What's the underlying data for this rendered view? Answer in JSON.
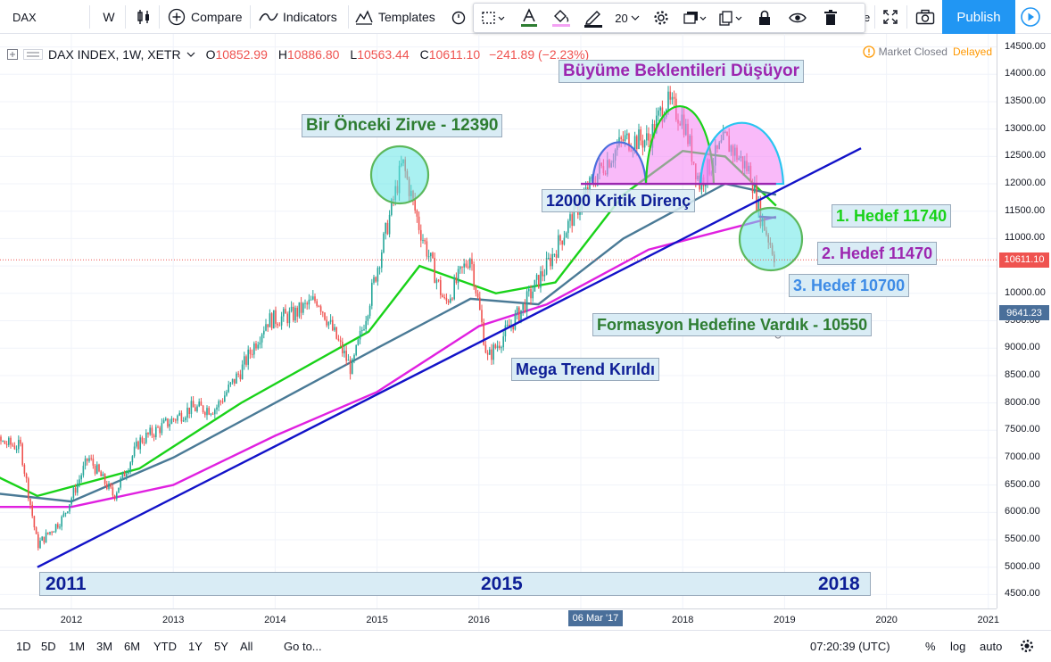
{
  "toolbar": {
    "symbol": "DAX",
    "interval": "W",
    "compare": "Compare",
    "indicators": "Indicators",
    "templates": "Templates",
    "publish": "Publish",
    "line_width": "20"
  },
  "legend": {
    "symbol": "DAX INDEX, 1W, XETR",
    "o_label": "O",
    "o_value": "10852.99",
    "h_label": "H",
    "h_value": "10886.80",
    "l_label": "L",
    "l_value": "10563.44",
    "c_label": "C",
    "c_value": "10611.10",
    "change": "−241.89 (−2.23%)",
    "market_status": "Market Closed",
    "delayed": "Delayed"
  },
  "price_axis": {
    "ticks": [
      "14500.00",
      "14000.00",
      "13500.00",
      "13000.00",
      "12500.00",
      "12000.00",
      "11500.00",
      "11000.00",
      "10500.00",
      "10000.00",
      "9500.00",
      "9000.00",
      "8500.00",
      "8000.00",
      "7500.00",
      "7000.00",
      "6500.00",
      "6000.00",
      "5500.00",
      "5000.00",
      "4500.00"
    ],
    "last_price": "10611.10",
    "crosshair_price": "9641.23",
    "last_price_color": "#ef5350",
    "crosshair_color": "#4a6f9a"
  },
  "time_axis": {
    "ticks": [
      "2012",
      "2013",
      "2014",
      "2015",
      "2016",
      "2018",
      "2019",
      "2020",
      "2021"
    ],
    "crosshair_date": "06 Mar '17"
  },
  "annotations": {
    "bir_onceki": "Bir Önceki Zirve - 12390",
    "buyume": "Büyüme Beklentileri Düşüyor",
    "kritik": "12000 Kritik Direnç",
    "hedef1": "1. Hedef 11740",
    "hedef2": "2. Hedef 11470",
    "hedef3": "3. Hedef 10700",
    "formasyon": "Formasyon Hedefine Vardık - 10550",
    "mega": "Mega Trend Kırıldı",
    "year_2011": "2011",
    "year_2015": "2015",
    "year_2018": "2018"
  },
  "bottom": {
    "ranges": [
      "1D",
      "5D",
      "1M",
      "3M",
      "6M",
      "YTD",
      "1Y",
      "5Y",
      "All"
    ],
    "goto": "Go to...",
    "clock": "07:20:39 (UTC)",
    "percent": "%",
    "log": "log",
    "auto": "auto"
  },
  "chart_data": {
    "type": "candlestick",
    "symbol": "DAX INDEX",
    "interval": "1W",
    "exchange": "XETR",
    "ylim": [
      4500,
      14500
    ],
    "x_range": [
      "2011-01",
      "2021-02"
    ],
    "close_series": [
      [
        "2011-01",
        7100
      ],
      [
        "2011-04",
        7300
      ],
      [
        "2011-07",
        7200
      ],
      [
        "2011-09",
        5400
      ],
      [
        "2011-12",
        5900
      ],
      [
        "2012-03",
        7000
      ],
      [
        "2012-06",
        6300
      ],
      [
        "2012-09",
        7300
      ],
      [
        "2012-12",
        7600
      ],
      [
        "2013-03",
        7900
      ],
      [
        "2013-06",
        7900
      ],
      [
        "2013-09",
        8600
      ],
      [
        "2013-12",
        9500
      ],
      [
        "2014-03",
        9600
      ],
      [
        "2014-06",
        9900
      ],
      [
        "2014-10",
        8600
      ],
      [
        "2014-12",
        9800
      ],
      [
        "2015-04",
        12390
      ],
      [
        "2015-06",
        11200
      ],
      [
        "2015-09",
        9800
      ],
      [
        "2015-12",
        10700
      ],
      [
        "2016-02",
        8800
      ],
      [
        "2016-06",
        9700
      ],
      [
        "2016-09",
        10500
      ],
      [
        "2016-12",
        11400
      ],
      [
        "2017-03",
        12200
      ],
      [
        "2017-06",
        12800
      ],
      [
        "2017-09",
        12800
      ],
      [
        "2017-11",
        13500
      ],
      [
        "2018-01",
        13200
      ],
      [
        "2018-03",
        12000
      ],
      [
        "2018-06",
        12800
      ],
      [
        "2018-09",
        12200
      ],
      [
        "2018-10",
        11500
      ],
      [
        "2018-12",
        10611
      ]
    ],
    "moving_averages": [
      {
        "name": "MA green",
        "color": "#19d219",
        "points": [
          [
            "2011-01",
            6900
          ],
          [
            "2011-09",
            6300
          ],
          [
            "2012-09",
            6800
          ],
          [
            "2013-09",
            8000
          ],
          [
            "2014-12",
            9300
          ],
          [
            "2015-06",
            10500
          ],
          [
            "2016-03",
            10000
          ],
          [
            "2016-10",
            10200
          ],
          [
            "2017-06",
            11800
          ],
          [
            "2018-01",
            12600
          ],
          [
            "2018-06",
            12500
          ],
          [
            "2018-12",
            11600
          ]
        ]
      },
      {
        "name": "MA blue",
        "color": "#4a7a96",
        "points": [
          [
            "2011-01",
            6400
          ],
          [
            "2012-01",
            6200
          ],
          [
            "2013-01",
            7000
          ],
          [
            "2014-01",
            8000
          ],
          [
            "2015-01",
            9000
          ],
          [
            "2015-12",
            9900
          ],
          [
            "2016-08",
            9800
          ],
          [
            "2017-06",
            11000
          ],
          [
            "2018-06",
            12000
          ],
          [
            "2018-12",
            11800
          ]
        ]
      },
      {
        "name": "MA magenta",
        "color": "#e020e0",
        "points": [
          [
            "2011-01",
            6100
          ],
          [
            "2012-01",
            6100
          ],
          [
            "2013-01",
            6500
          ],
          [
            "2014-01",
            7400
          ],
          [
            "2015-01",
            8200
          ],
          [
            "2016-01",
            9400
          ],
          [
            "2016-09",
            9800
          ],
          [
            "2017-09",
            10800
          ],
          [
            "2018-12",
            11400
          ]
        ]
      }
    ],
    "trendline": {
      "from": [
        "2011-09",
        5000
      ],
      "to": [
        "2019-10",
        12650
      ],
      "label": "Mega Trend Kırıldı"
    },
    "resistance": 12000,
    "targets": [
      11740,
      11470,
      10700,
      10550
    ],
    "previous_peak": 12390
  }
}
